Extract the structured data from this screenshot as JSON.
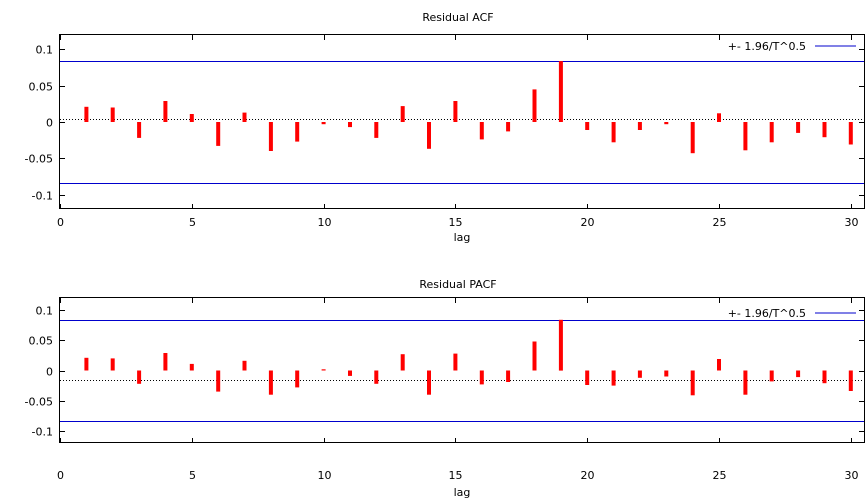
{
  "chart_data": [
    {
      "type": "bar",
      "title": "Residual ACF",
      "xlabel": "lag",
      "ylabel": "",
      "xlim": [
        0,
        30.5
      ],
      "ylim": [
        -0.12,
        0.12
      ],
      "xticks": [
        "0",
        "5",
        "10",
        "15",
        "20",
        "25",
        "30"
      ],
      "yticks": [
        "0.1",
        "0.05",
        "0",
        "-0.05",
        "-0.1"
      ],
      "bound_label": "+- 1.96/T^0.5",
      "bound_value": 0.084,
      "grid": false,
      "legend_position": "top-right",
      "bar_color": "#ff0000",
      "bound_color": "#0000cc",
      "series": [
        {
          "x": [
            1,
            2,
            3,
            4,
            5,
            6,
            7,
            8,
            9,
            10,
            11,
            12,
            13,
            14,
            15,
            16,
            17,
            18,
            19,
            20,
            21,
            22,
            23,
            24,
            25,
            26,
            27,
            28,
            29,
            30
          ],
          "values": [
            0.021,
            0.02,
            -0.022,
            0.029,
            0.011,
            -0.033,
            0.013,
            -0.04,
            -0.027,
            -0.003,
            -0.007,
            -0.022,
            0.022,
            -0.037,
            0.029,
            -0.024,
            -0.013,
            0.045,
            0.084,
            -0.011,
            -0.028,
            -0.011,
            -0.003,
            -0.043,
            0.012,
            -0.039,
            -0.028,
            -0.015,
            -0.021,
            -0.031
          ]
        }
      ]
    },
    {
      "type": "bar",
      "title": "Residual PACF",
      "xlabel": "lag",
      "ylabel": "",
      "xlim": [
        0,
        30.5
      ],
      "ylim": [
        -0.12,
        0.12
      ],
      "xticks": [
        "0",
        "5",
        "10",
        "15",
        "20",
        "25",
        "30"
      ],
      "yticks": [
        "0.1",
        "0.05",
        "0",
        "-0.05",
        "-0.1"
      ],
      "bound_label": "+- 1.96/T^0.5",
      "bound_value": 0.084,
      "grid": false,
      "legend_position": "top-right",
      "bar_color": "#ff0000",
      "bound_color": "#0000cc",
      "series": [
        {
          "x": [
            1,
            2,
            3,
            4,
            5,
            6,
            7,
            8,
            9,
            10,
            11,
            12,
            13,
            14,
            15,
            16,
            17,
            18,
            19,
            20,
            21,
            22,
            23,
            24,
            25,
            26,
            27,
            28,
            29,
            30
          ],
          "values": [
            0.021,
            0.02,
            -0.022,
            0.029,
            0.011,
            -0.035,
            0.016,
            -0.04,
            -0.028,
            0.002,
            -0.009,
            -0.022,
            0.027,
            -0.04,
            0.028,
            -0.023,
            -0.019,
            0.048,
            0.084,
            -0.024,
            -0.025,
            -0.012,
            -0.01,
            -0.041,
            0.019,
            -0.04,
            -0.018,
            -0.011,
            -0.021,
            -0.034
          ]
        }
      ]
    }
  ]
}
